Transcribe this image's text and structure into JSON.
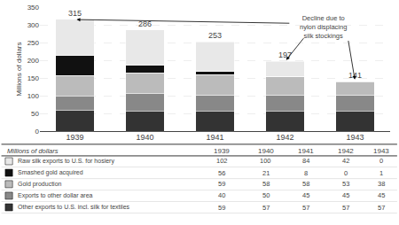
{
  "chart_data": {
    "type": "bar",
    "stacked": true,
    "categories": [
      "1939",
      "1940",
      "1941",
      "1942",
      "1943"
    ],
    "series": [
      {
        "name": "Other exports to U.S. incl. silk for textiles",
        "color": "#333333",
        "values": [
          59,
          57,
          57,
          57,
          57
        ]
      },
      {
        "name": "Exports to other dollar area",
        "color": "#888888",
        "values": [
          40,
          50,
          45,
          45,
          45
        ]
      },
      {
        "name": "Gold production",
        "color": "#bbbbbb",
        "values": [
          59,
          58,
          58,
          53,
          38
        ]
      },
      {
        "name": "Smashed gold acquired",
        "color": "#111111",
        "values": [
          56,
          21,
          8,
          0,
          1
        ]
      },
      {
        "name": "Raw silk exports to U.S. for hosiery",
        "color": "#e8e8e8",
        "values": [
          102,
          100,
          84,
          42,
          0
        ]
      }
    ],
    "totals": [
      315,
      286,
      253,
      197,
      141
    ],
    "ylabel": "Millions of dollars",
    "ylim": [
      0,
      350
    ],
    "yticks": [
      0,
      50,
      100,
      150,
      200,
      250,
      300,
      350
    ],
    "grid": true,
    "annotations": [
      "Decline due to\nnylon displacing\nsilk stockings"
    ]
  }
}
